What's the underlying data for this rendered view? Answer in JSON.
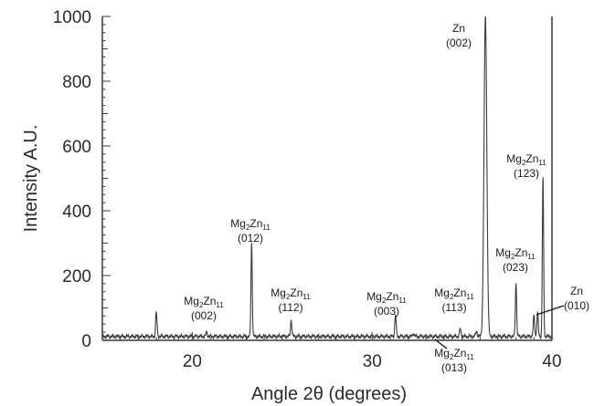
{
  "chart_data": {
    "type": "line",
    "xlabel": "Angle 2θ (degrees)",
    "ylabel": "Intensity A.U.",
    "xlim": [
      15,
      40
    ],
    "ylim": [
      0,
      1000
    ],
    "x_ticks": [
      20,
      30,
      40
    ],
    "y_ticks": [
      0,
      200,
      400,
      600,
      800,
      1000
    ],
    "grid": false,
    "series": [
      {
        "baseline": 12,
        "peaks": [
          {
            "x": 18.0,
            "y": 85
          },
          {
            "x": 20.8,
            "y": 25
          },
          {
            "x": 23.3,
            "y": 300
          },
          {
            "x": 25.5,
            "y": 62
          },
          {
            "x": 31.3,
            "y": 78
          },
          {
            "x": 32.3,
            "y": 22
          },
          {
            "x": 34.9,
            "y": 35
          },
          {
            "x": 35.8,
            "y": 30
          },
          {
            "x": 36.3,
            "y": 1000
          },
          {
            "x": 38.0,
            "y": 178
          },
          {
            "x": 39.0,
            "y": 75
          },
          {
            "x": 39.2,
            "y": 82
          },
          {
            "x": 39.5,
            "y": 500
          }
        ]
      }
    ],
    "annotations": [
      {
        "formula": [
          "Mg",
          "2",
          "Zn",
          "11"
        ],
        "index": "(002)",
        "x": 20.8
      },
      {
        "formula": [
          "Mg",
          "2",
          "Zn",
          "11"
        ],
        "index": "(012)",
        "x": 23.3
      },
      {
        "formula": [
          "Mg",
          "2",
          "Zn",
          "11"
        ],
        "index": "(112)",
        "x": 25.5
      },
      {
        "formula": [
          "Mg",
          "2",
          "Zn",
          "11"
        ],
        "index": "(003)",
        "x": 31.3
      },
      {
        "formula": [
          "Mg",
          "2",
          "Zn",
          "11"
        ],
        "index": "(113)",
        "x": 34.9
      },
      {
        "formula": [
          "Mg",
          "2",
          "Zn",
          "11"
        ],
        "index": "(013)",
        "x": 32.3
      },
      {
        "formula": [
          "Zn"
        ],
        "index": "(002)",
        "x": 36.3
      },
      {
        "formula": [
          "Mg",
          "2",
          "Zn",
          "11"
        ],
        "index": "(023)",
        "x": 38.0
      },
      {
        "formula": [
          "Mg",
          "2",
          "Zn",
          "11"
        ],
        "index": "(123)",
        "x": 39.5
      },
      {
        "formula": [
          "Zn"
        ],
        "index": "(010)",
        "x": 39.1
      }
    ]
  }
}
